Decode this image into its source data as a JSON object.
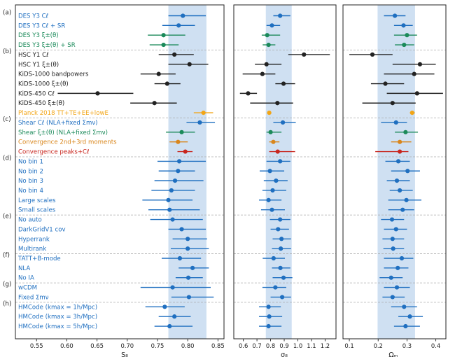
{
  "chart_data": {
    "type": "scatter",
    "description": "Forest plot of S8, sigma8 and Omega_m constraints (mean with horizontal error bar)",
    "panels": [
      {
        "xlabel": "S₈",
        "xlim": [
          0.515,
          0.86
        ],
        "ticks": [
          0.55,
          0.6,
          0.65,
          0.7,
          0.75,
          0.8,
          0.85
        ],
        "tick_labels": [
          "0.55",
          "0.60",
          "0.65",
          "0.70",
          "0.75",
          "0.80",
          "0.85"
        ],
        "band": [
          0.768,
          0.831
        ]
      },
      {
        "xlabel": "σ₈",
        "xlim": [
          0.53,
          1.28
        ],
        "ticks": [
          0.6,
          0.7,
          0.8,
          0.9,
          1.0,
          1.1,
          1.2
        ],
        "tick_labels": [
          "0.6",
          "0.7",
          "0.8",
          "0.9",
          "1.0",
          "1.1",
          "1.2"
        ],
        "band": [
          0.765,
          0.955
        ]
      },
      {
        "xlabel": "Ωₘ",
        "xlim": [
          0.078,
          0.435
        ],
        "ticks": [
          0.1,
          0.2,
          0.3,
          0.4
        ],
        "tick_labels": [
          "0.1",
          "0.2",
          "0.3",
          "0.4"
        ],
        "band": [
          0.198,
          0.328
        ]
      }
    ],
    "sections": [
      {
        "label": "(a)",
        "start": 0
      },
      {
        "label": "(b)",
        "start": 4
      },
      {
        "label": "(c)",
        "start": 11
      },
      {
        "label": "(d)",
        "start": 15
      },
      {
        "label": "(e)",
        "start": 21
      },
      {
        "label": "(f)",
        "start": 25
      },
      {
        "label": "(g)",
        "start": 28
      },
      {
        "label": "(h)",
        "start": 30
      }
    ],
    "rows": [
      {
        "label": "DES Y3 Cℓ",
        "color": "#1f6fc0",
        "s8": [
          0.792,
          0.768,
          0.83
        ],
        "sigma8": [
          0.87,
          0.82,
          0.945
        ],
        "om": [
          0.258,
          0.22,
          0.295
        ]
      },
      {
        "label": "DES Y3 Cℓ + SR",
        "color": "#1f6fc0",
        "s8": [
          0.785,
          0.758,
          0.812
        ],
        "sigma8": [
          0.81,
          0.77,
          0.87
        ],
        "om": [
          0.288,
          0.255,
          0.32
        ]
      },
      {
        "label": "DES Y3 ξ±(θ)",
        "color": "#1b8a5a",
        "s8": [
          0.76,
          0.734,
          0.796
        ],
        "sigma8": [
          0.775,
          0.735,
          0.87
        ],
        "om": [
          0.3,
          0.255,
          0.335
        ]
      },
      {
        "label": "DES Y3 ξ±(θ) + SR",
        "color": "#1b8a5a",
        "s8": [
          0.76,
          0.737,
          0.785
        ],
        "sigma8": [
          0.785,
          0.742,
          0.835
        ],
        "om": [
          0.29,
          0.258,
          0.325
        ]
      },
      {
        "label": "HSC Y1 Cℓ",
        "color": "#222222",
        "s8": [
          0.778,
          0.752,
          0.81
        ],
        "sigma8": [
          1.045,
          0.93,
          1.235
        ],
        "om": [
          0.18,
          0.1,
          0.25
        ]
      },
      {
        "label": "HSC Y1 ξ±(θ)",
        "color": "#222222",
        "s8": [
          0.803,
          0.768,
          0.834
        ],
        "sigma8": [
          0.77,
          0.685,
          0.88
        ],
        "om": [
          0.345,
          0.25,
          0.4
        ]
      },
      {
        "label": "KiDS-1000 bandpowers",
        "color": "#222222",
        "s8": [
          0.752,
          0.722,
          0.78
        ],
        "sigma8": [
          0.74,
          0.595,
          0.835
        ],
        "om": [
          0.325,
          0.22,
          0.395
        ]
      },
      {
        "label": "KiDS-1000 ξ±(θ)",
        "color": "#222222",
        "s8": [
          0.766,
          0.745,
          0.788
        ],
        "sigma8": [
          0.895,
          0.835,
          0.98
        ],
        "om": [
          0.225,
          0.175,
          0.29
        ]
      },
      {
        "label": "KiDS-450 Cℓ",
        "color": "#222222",
        "s8": [
          0.651,
          0.585,
          0.71
        ],
        "sigma8": [
          0.635,
          0.575,
          0.7
        ],
        "om": [
          0.335,
          0.23,
          0.425
        ]
      },
      {
        "label": "KiDS-450 ξ±(θ)",
        "color": "#222222",
        "s8": [
          0.745,
          0.705,
          0.782
        ],
        "sigma8": [
          0.85,
          0.65,
          0.965
        ],
        "om": [
          0.25,
          0.145,
          0.33
        ]
      },
      {
        "label": "Planck 2018 TT+TE+EE+lowE",
        "color": "#f2a516",
        "s8": [
          0.826,
          0.81,
          0.842
        ],
        "sigma8": [
          0.79,
          0.78,
          0.8
        ],
        "om": [
          0.318,
          0.31,
          0.327
        ]
      },
      {
        "label": "Shear Cℓ (NLA+fixed Σmν)",
        "color": "#1f6fc0",
        "s8": [
          0.82,
          0.798,
          0.845
        ],
        "sigma8": [
          0.89,
          0.82,
          0.985
        ],
        "om": [
          0.262,
          0.21,
          0.3
        ]
      },
      {
        "label": "Shear ξ±(θ) (NLA+fixed Σmν)",
        "color": "#1b8a5a",
        "s8": [
          0.79,
          0.764,
          0.812
        ],
        "sigma8": [
          0.8,
          0.77,
          0.88
        ],
        "om": [
          0.295,
          0.258,
          0.338
        ]
      },
      {
        "label": "Convergence 2nd+3rd moments",
        "color": "#d9861c",
        "s8": [
          0.784,
          0.77,
          0.8
        ],
        "sigma8": [
          0.82,
          0.79,
          0.865
        ],
        "om": [
          0.275,
          0.245,
          0.315
        ]
      },
      {
        "label": "Convergence peaks+Cℓ",
        "color": "#c8261e",
        "s8": [
          0.796,
          0.783,
          0.808
        ],
        "sigma8": [
          0.852,
          0.79,
          0.98
        ],
        "om": [
          0.275,
          0.19,
          0.305
        ]
      },
      {
        "label": "No bin 1",
        "color": "#1f6fc0",
        "s8": [
          0.786,
          0.75,
          0.83
        ],
        "sigma8": [
          0.87,
          0.77,
          0.945
        ],
        "om": [
          0.27,
          0.225,
          0.31
        ]
      },
      {
        "label": "No bin 2",
        "color": "#1f6fc0",
        "s8": [
          0.784,
          0.752,
          0.812
        ],
        "sigma8": [
          0.795,
          0.72,
          0.9
        ],
        "om": [
          0.302,
          0.245,
          0.345
        ]
      },
      {
        "label": "No bin 3",
        "color": "#1f6fc0",
        "s8": [
          0.779,
          0.745,
          0.826
        ],
        "sigma8": [
          0.84,
          0.75,
          0.925
        ],
        "om": [
          0.265,
          0.23,
          0.31
        ]
      },
      {
        "label": "No bin 4",
        "color": "#1f6fc0",
        "s8": [
          0.773,
          0.74,
          0.812
        ],
        "sigma8": [
          0.815,
          0.74,
          0.915
        ],
        "om": [
          0.275,
          0.24,
          0.32
        ]
      },
      {
        "label": "Large scales",
        "color": "#1f6fc0",
        "s8": [
          0.768,
          0.725,
          0.808
        ],
        "sigma8": [
          0.785,
          0.715,
          0.88
        ],
        "om": [
          0.298,
          0.235,
          0.35
        ]
      },
      {
        "label": "Small scales",
        "color": "#1f6fc0",
        "s8": [
          0.77,
          0.735,
          0.82
        ],
        "sigma8": [
          0.81,
          0.73,
          0.905
        ],
        "om": [
          0.285,
          0.235,
          0.325
        ]
      },
      {
        "label": "No auto",
        "color": "#1f6fc0",
        "s8": [
          0.775,
          0.738,
          0.825
        ],
        "sigma8": [
          0.87,
          0.795,
          0.945
        ],
        "om": [
          0.248,
          0.21,
          0.29
        ]
      },
      {
        "label": "DarkGridV1 cov",
        "color": "#1f6fc0",
        "s8": [
          0.79,
          0.768,
          0.83
        ],
        "sigma8": [
          0.855,
          0.8,
          0.935
        ],
        "om": [
          0.262,
          0.22,
          0.3
        ]
      },
      {
        "label": "Hyperrank",
        "color": "#1f6fc0",
        "s8": [
          0.8,
          0.775,
          0.832
        ],
        "sigma8": [
          0.88,
          0.815,
          0.95
        ],
        "om": [
          0.25,
          0.215,
          0.29
        ]
      },
      {
        "label": "Multirank",
        "color": "#1f6fc0",
        "s8": [
          0.8,
          0.772,
          0.835
        ],
        "sigma8": [
          0.875,
          0.81,
          0.95
        ],
        "om": [
          0.252,
          0.218,
          0.29
        ]
      },
      {
        "label": "TATT+B-mode",
        "color": "#1f6fc0",
        "s8": [
          0.787,
          0.757,
          0.822
        ],
        "sigma8": [
          0.822,
          0.742,
          0.905
        ],
        "om": [
          0.282,
          0.22,
          0.322
        ]
      },
      {
        "label": "NLA",
        "color": "#1f6fc0",
        "s8": [
          0.808,
          0.785,
          0.835
        ],
        "sigma8": [
          0.872,
          0.81,
          0.945
        ],
        "om": [
          0.268,
          0.22,
          0.305
        ]
      },
      {
        "label": "No IA",
        "color": "#1f6fc0",
        "s8": [
          0.801,
          0.78,
          0.825
        ],
        "sigma8": [
          0.895,
          0.815,
          0.96
        ],
        "om": [
          0.245,
          0.205,
          0.285
        ]
      },
      {
        "label": "wCDM",
        "color": "#1f6fc0",
        "s8": [
          0.775,
          0.722,
          0.838
        ],
        "sigma8": [
          0.835,
          0.74,
          0.915
        ],
        "om": [
          0.265,
          0.22,
          0.31
        ]
      },
      {
        "label": "Fixed Σmν",
        "color": "#1f6fc0",
        "s8": [
          0.802,
          0.773,
          0.843
        ],
        "sigma8": [
          0.885,
          0.8,
          0.95
        ],
        "om": [
          0.25,
          0.215,
          0.292
        ]
      },
      {
        "label": "HMCode (kmax = 1h/Mpc)",
        "color": "#1f6fc0",
        "s8": [
          0.762,
          0.73,
          0.795
        ],
        "sigma8": [
          0.785,
          0.715,
          0.875
        ],
        "om": [
          0.29,
          0.245,
          0.335
        ]
      },
      {
        "label": "HMCode (kmax = 3h/Mpc)",
        "color": "#1f6fc0",
        "s8": [
          0.778,
          0.752,
          0.805
        ],
        "sigma8": [
          0.79,
          0.715,
          0.885
        ],
        "om": [
          0.31,
          0.27,
          0.355
        ]
      },
      {
        "label": "HMCode (kmax = 5h/Mpc)",
        "color": "#1f6fc0",
        "s8": [
          0.77,
          0.745,
          0.808
        ],
        "sigma8": [
          0.785,
          0.715,
          0.88
        ],
        "om": [
          0.295,
          0.255,
          0.345
        ]
      }
    ]
  }
}
